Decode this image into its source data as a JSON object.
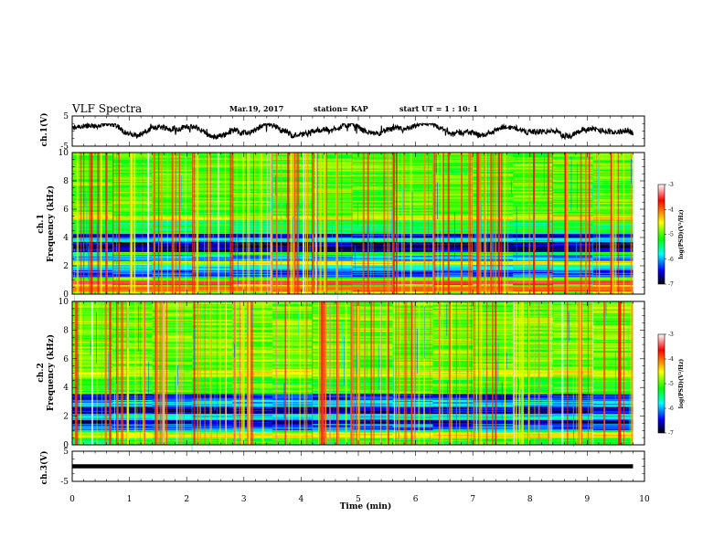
{
  "header": {
    "title": "VLF Spectra",
    "date": "Mar.19, 2017",
    "station": "station= KAP",
    "start": "start  UT =   1 : 10: 1"
  },
  "chart_data": [
    {
      "type": "line",
      "name": "ch1-waveform",
      "ylabel": "ch.1(V)",
      "xlim": [
        0,
        10
      ],
      "ylim": [
        -5,
        5
      ],
      "yticks": [
        "5",
        "-5"
      ],
      "data_extent_min": 9.8,
      "noise_band": [
        -3.2,
        2.4
      ],
      "color": "#000000"
    },
    {
      "type": "heatmap",
      "name": "ch1-spectrogram",
      "ylabel": "ch.1\nFrequency  (kHz)",
      "xlim": [
        0,
        10
      ],
      "ylim": [
        0,
        10
      ],
      "yticks": [
        "0",
        "2",
        "4",
        "6",
        "8",
        "10"
      ],
      "bands": [
        {
          "f": [
            0.0,
            0.25
          ],
          "level": 0.55
        },
        {
          "f": [
            0.25,
            0.55
          ],
          "level": 0.75
        },
        {
          "f": [
            0.55,
            0.7
          ],
          "level": 0.55
        },
        {
          "f": [
            0.7,
            0.95
          ],
          "level": 0.88
        },
        {
          "f": [
            0.95,
            1.2
          ],
          "level": 0.5
        },
        {
          "f": [
            1.2,
            1.7
          ],
          "level": 0.18
        },
        {
          "f": [
            1.7,
            2.1
          ],
          "level": 0.3
        },
        {
          "f": [
            2.1,
            2.4
          ],
          "level": 0.6
        },
        {
          "f": [
            2.4,
            2.8
          ],
          "level": 0.25
        },
        {
          "f": [
            2.8,
            3.0
          ],
          "level": 0.45
        },
        {
          "f": [
            3.0,
            3.7
          ],
          "level": 0.08
        },
        {
          "f": [
            3.7,
            4.0
          ],
          "level": 0.3
        },
        {
          "f": [
            4.0,
            4.3
          ],
          "level": 0.12
        },
        {
          "f": [
            4.3,
            5.3
          ],
          "level": 0.42
        },
        {
          "f": [
            5.3,
            5.6
          ],
          "level": 0.62
        },
        {
          "f": [
            5.6,
            10.0
          ],
          "level": 0.5
        }
      ]
    },
    {
      "type": "heatmap",
      "name": "ch2-spectrogram",
      "ylabel": "ch.2\nFrequency  (kHz)",
      "xlim": [
        0,
        10
      ],
      "ylim": [
        0,
        10
      ],
      "yticks": [
        "0",
        "2",
        "4",
        "6",
        "8",
        "10"
      ],
      "bands": [
        {
          "f": [
            0.0,
            0.5
          ],
          "level": 0.45
        },
        {
          "f": [
            0.5,
            0.9
          ],
          "level": 0.62
        },
        {
          "f": [
            0.9,
            1.1
          ],
          "level": 0.4
        },
        {
          "f": [
            1.1,
            1.5
          ],
          "level": 0.2
        },
        {
          "f": [
            1.5,
            1.8
          ],
          "level": 0.08
        },
        {
          "f": [
            1.8,
            2.2
          ],
          "level": 0.3
        },
        {
          "f": [
            2.2,
            2.7
          ],
          "level": 0.1
        },
        {
          "f": [
            2.7,
            3.2
          ],
          "level": 0.28
        },
        {
          "f": [
            3.2,
            3.6
          ],
          "level": 0.15
        },
        {
          "f": [
            3.6,
            4.8
          ],
          "level": 0.48
        },
        {
          "f": [
            4.8,
            5.3
          ],
          "level": 0.6
        },
        {
          "f": [
            5.3,
            10.0
          ],
          "level": 0.52
        }
      ]
    },
    {
      "type": "line",
      "name": "ch3-waveform",
      "ylabel": "ch.3(V)",
      "xlabel": "Time  (min)",
      "xlim": [
        0,
        10
      ],
      "ylim": [
        -5,
        5
      ],
      "yticks": [
        "5",
        "-5"
      ],
      "xticks": [
        "0",
        "1",
        "2",
        "3",
        "4",
        "5",
        "6",
        "7",
        "8",
        "9",
        "10"
      ],
      "data_extent_min": 9.8,
      "constant_value": 0,
      "color": "#000000"
    }
  ],
  "colorbar": {
    "label": "log(PSD)(V²/Hz)",
    "range": [
      -7,
      -3
    ],
    "ticks": [
      "-3",
      "-4",
      "-5",
      "-6",
      "-7"
    ],
    "colors": [
      "#ffffff",
      "#ff0000",
      "#ffff00",
      "#00ff00",
      "#00ffff",
      "#0000ff",
      "#000000"
    ]
  }
}
